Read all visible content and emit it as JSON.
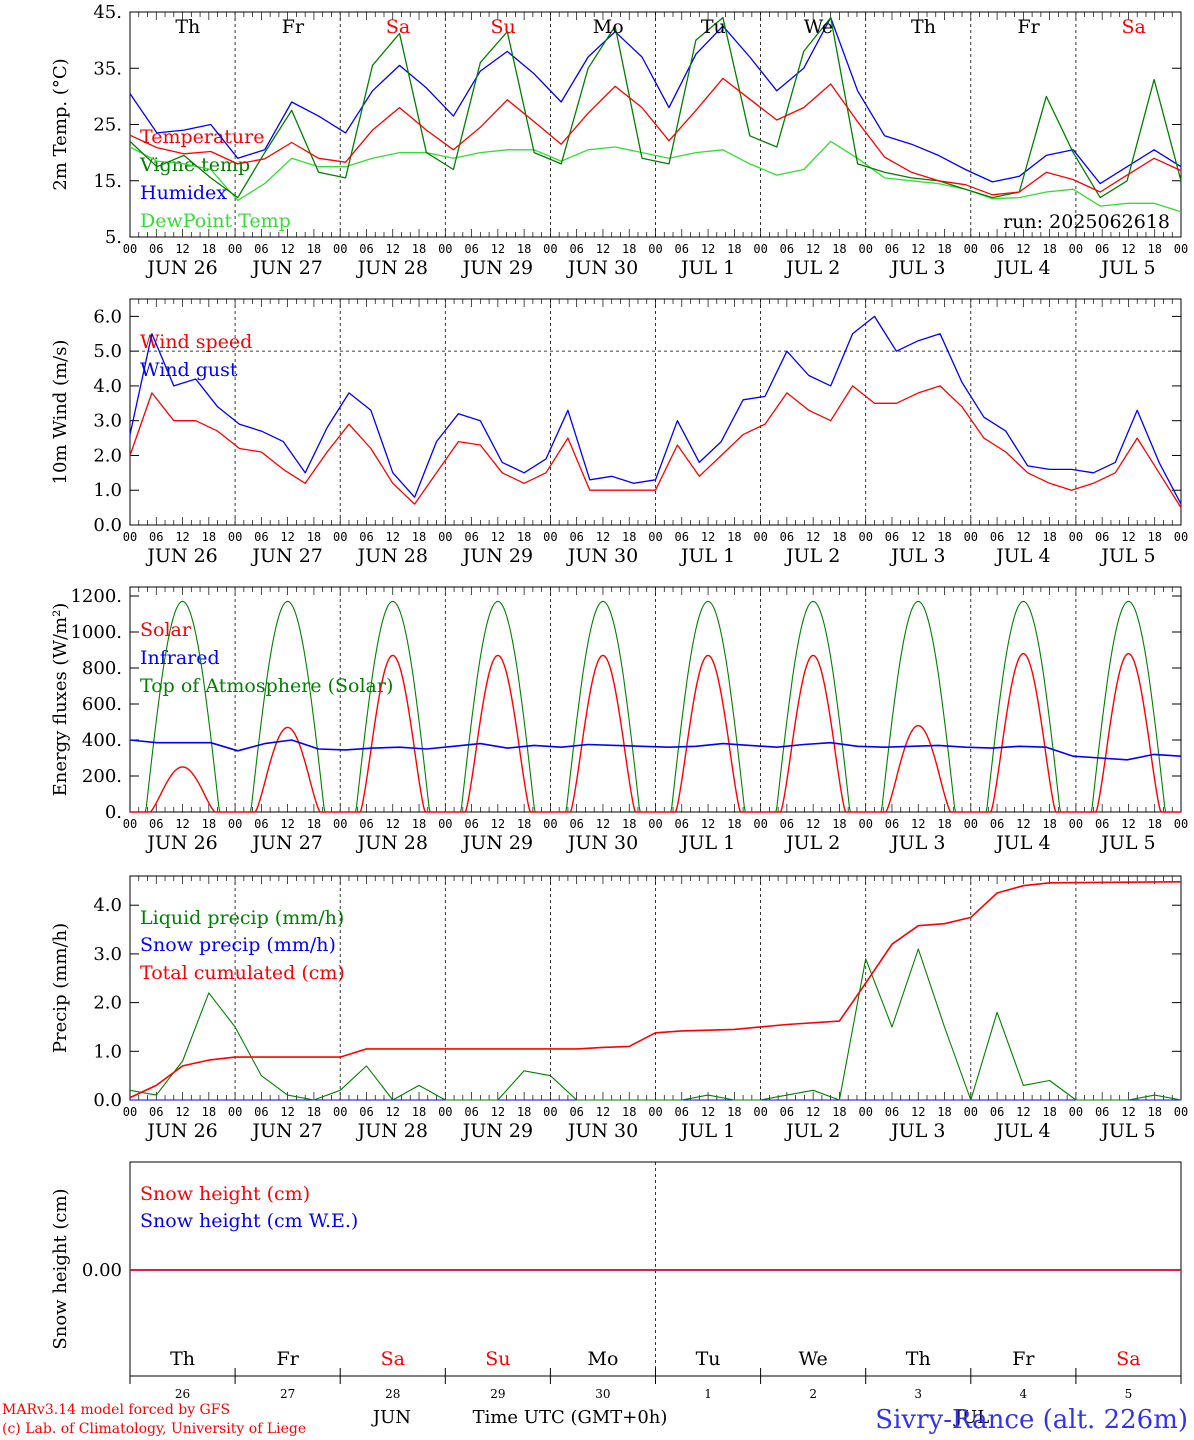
{
  "days": [
    "26",
    "27",
    "28",
    "29",
    "30",
    "1",
    "2",
    "3",
    "4",
    "5"
  ],
  "date_labels": [
    "JUN 26",
    "JUN 27",
    "JUN 28",
    "JUN 29",
    "JUN 30",
    "JUL  1",
    "JUL  2",
    "JUL  3",
    "JUL  4",
    "JUL  5"
  ],
  "weekdays": [
    "Th",
    "Fr",
    "Sa",
    "Su",
    "Mo",
    "Tu",
    "We",
    "Th",
    "Fr",
    "Sa"
  ],
  "weekend_flags": [
    false,
    false,
    true,
    true,
    false,
    false,
    false,
    false,
    false,
    true
  ],
  "hour_labels": [
    "00",
    "06",
    "12",
    "18"
  ],
  "last_hour_label": "00",
  "colors": {
    "red": "#ff0000",
    "green": "#008000",
    "blue": "#0000ff",
    "lightgreen": "#33dd33",
    "purple": "#3333ee"
  },
  "bottom_month_left": "JUN",
  "bottom_month_right": "JUL",
  "bottom_xlabel": "Time UTC (GMT+0h)",
  "credit_line1": "MARv3.14 model forced by GFS",
  "credit_line2": "(c) Lab. of Climatology, University of Liege",
  "station": "Sivry-Rance (alt. 226m)",
  "chart_data": [
    {
      "type": "line",
      "ylabel": "2m Temp. (°C)",
      "ylim": [
        5,
        45
      ],
      "yticks": [
        "45.",
        "35.",
        "25.",
        "15.",
        "5."
      ],
      "run_label": "run: 2025062618",
      "series": [
        {
          "name": "Temperature",
          "color": "red",
          "values": [
            23.1,
            20.9,
            19.8,
            20.2,
            18.0,
            18.9,
            21.8,
            19.0,
            18.3,
            24.0,
            28.0,
            24.0,
            20.5,
            24.5,
            29.4,
            25.5,
            21.5,
            27.0,
            31.8,
            28.0,
            22.1,
            27.5,
            33.2,
            29.5,
            25.8,
            28.0,
            32.2,
            25.5,
            19.2,
            16.5,
            15.0,
            14.3,
            12.5,
            13.0,
            16.5,
            15.2,
            13.0,
            16.0,
            19.0,
            16.8
          ]
        },
        {
          "name": "Vigne temp",
          "color": "green",
          "values": [
            22.0,
            17.5,
            19.5,
            15.5,
            12.0,
            20.0,
            27.5,
            16.5,
            15.5,
            35.5,
            41.2,
            20.0,
            17.0,
            36.0,
            41.5,
            20.0,
            18.0,
            35.0,
            42.5,
            19.0,
            18.0,
            40.0,
            44.0,
            23.0,
            21.0,
            38.0,
            44.0,
            18.0,
            16.5,
            15.5,
            15.0,
            13.5,
            12.0,
            13.0,
            30.0,
            20.0,
            12.0,
            15.0,
            33.0,
            15.0
          ]
        },
        {
          "name": "Humidex",
          "color": "blue",
          "values": [
            30.5,
            23.5,
            24.0,
            25.0,
            19.0,
            20.5,
            29.0,
            26.5,
            23.5,
            31.0,
            35.5,
            31.5,
            26.5,
            34.5,
            38.0,
            34.0,
            29.0,
            37.0,
            41.5,
            37.0,
            28.0,
            37.5,
            42.5,
            37.0,
            31.0,
            35.0,
            44.0,
            31.0,
            23.0,
            21.5,
            19.5,
            17.0,
            14.8,
            15.8,
            19.5,
            20.5,
            14.5,
            17.5,
            20.5,
            17.5
          ]
        },
        {
          "name": "DewPoint Temp",
          "color": "lightgreen",
          "values": [
            21.0,
            18.5,
            18.0,
            17.0,
            11.5,
            14.5,
            19.0,
            17.5,
            17.5,
            19.0,
            20.0,
            20.0,
            19.0,
            20.0,
            20.5,
            20.5,
            18.5,
            20.5,
            21.0,
            20.0,
            19.0,
            20.0,
            20.5,
            18.0,
            16.0,
            17.0,
            22.0,
            19.0,
            15.5,
            15.0,
            14.5,
            13.5,
            11.8,
            12.0,
            13.0,
            13.5,
            10.5,
            11.0,
            11.0,
            9.5
          ]
        }
      ]
    },
    {
      "type": "line",
      "ylabel": "10m Wind (m/s)",
      "ylim": [
        0,
        6.5
      ],
      "yticks": [
        "6.0",
        "5.0",
        "4.0",
        "3.0",
        "2.0",
        "1.0",
        "0.0"
      ],
      "ref_line": 5.0,
      "series": [
        {
          "name": "Wind speed",
          "color": "red",
          "values": [
            2.0,
            3.8,
            3.0,
            3.0,
            2.7,
            2.2,
            2.1,
            1.6,
            1.2,
            2.1,
            2.9,
            2.2,
            1.2,
            0.6,
            1.5,
            2.4,
            2.3,
            1.5,
            1.2,
            1.5,
            2.5,
            1.0,
            1.0,
            1.0,
            1.0,
            2.3,
            1.4,
            2.0,
            2.6,
            2.9,
            3.8,
            3.3,
            3.0,
            4.0,
            3.5,
            3.5,
            3.8,
            4.0,
            3.4,
            2.5,
            2.1,
            1.5,
            1.2,
            1.0,
            1.2,
            1.5,
            2.5,
            1.5,
            0.5
          ]
        },
        {
          "name": "Wind gust",
          "color": "blue",
          "values": [
            2.6,
            5.5,
            4.0,
            4.2,
            3.4,
            2.9,
            2.7,
            2.4,
            1.5,
            2.8,
            3.8,
            3.3,
            1.5,
            0.8,
            2.4,
            3.2,
            3.0,
            1.8,
            1.5,
            1.9,
            3.3,
            1.3,
            1.4,
            1.2,
            1.3,
            3.0,
            1.8,
            2.4,
            3.6,
            3.7,
            5.0,
            4.3,
            4.0,
            5.5,
            6.0,
            5.0,
            5.3,
            5.5,
            4.1,
            3.1,
            2.7,
            1.7,
            1.6,
            1.6,
            1.5,
            1.8,
            3.3,
            1.8,
            0.6
          ]
        }
      ]
    },
    {
      "type": "line",
      "ylabel": "Energy fluxes (W/m²)",
      "ylim": [
        0,
        1250
      ],
      "yticks": [
        "1200.",
        "1000.",
        "800.",
        "600.",
        "400.",
        "200.",
        "0."
      ],
      "series": [
        {
          "name": "Solar",
          "color": "red",
          "day_peaks": [
            250,
            470,
            870,
            870,
            870,
            870,
            870,
            480,
            880,
            880
          ]
        },
        {
          "name": "Infrared",
          "color": "blue",
          "values": [
            400,
            385,
            385,
            385,
            340,
            380,
            400,
            350,
            345,
            355,
            360,
            350,
            365,
            380,
            355,
            370,
            360,
            375,
            370,
            365,
            360,
            365,
            380,
            370,
            360,
            375,
            385,
            365,
            360,
            365,
            370,
            360,
            355,
            365,
            360,
            310,
            300,
            290,
            320,
            310
          ]
        },
        {
          "name": "Top of Atmosphere (Solar)",
          "color": "green",
          "day_peaks": [
            1170,
            1170,
            1170,
            1170,
            1170,
            1170,
            1170,
            1170,
            1170,
            1170
          ]
        }
      ]
    },
    {
      "type": "line",
      "ylabel": "Precip (mm/h)",
      "ylim": [
        0,
        4.6
      ],
      "yticks": [
        "4.0",
        "3.0",
        "2.0",
        "1.0",
        "0.0"
      ],
      "series": [
        {
          "name": "Liquid precip (mm/h)",
          "color": "green",
          "points": [
            [
              0,
              0.2
            ],
            [
              1,
              0.1
            ],
            [
              2,
              0.8
            ],
            [
              3,
              2.2
            ],
            [
              4,
              1.5
            ],
            [
              5,
              0.5
            ],
            [
              6,
              0.1
            ],
            [
              7,
              0
            ],
            [
              8,
              0.2
            ],
            [
              9,
              0.7
            ],
            [
              10,
              0
            ],
            [
              11,
              0.3
            ],
            [
              12,
              0
            ],
            [
              13,
              0
            ],
            [
              14,
              0
            ],
            [
              15,
              0.6
            ],
            [
              16,
              0.5
            ],
            [
              17,
              0
            ],
            [
              18,
              0
            ],
            [
              19,
              0
            ],
            [
              20,
              0
            ],
            [
              21,
              0
            ],
            [
              22,
              0.1
            ],
            [
              23,
              0
            ],
            [
              24,
              0
            ],
            [
              25,
              0.1
            ],
            [
              26,
              0.2
            ],
            [
              27,
              0
            ],
            [
              28,
              2.9
            ],
            [
              29,
              1.5
            ],
            [
              30,
              3.1
            ],
            [
              31,
              1.5
            ],
            [
              32,
              0
            ],
            [
              33,
              1.8
            ],
            [
              34,
              0.3
            ],
            [
              35,
              0.4
            ],
            [
              36,
              0
            ],
            [
              37,
              0
            ],
            [
              38,
              0
            ],
            [
              39,
              0.1
            ],
            [
              40,
              0
            ]
          ]
        },
        {
          "name": "Snow precip (mm/h)",
          "color": "blue",
          "points": [
            [
              0,
              0
            ],
            [
              40,
              0
            ]
          ]
        },
        {
          "name": "Total cumulated (cm)",
          "color": "red",
          "points": [
            [
              0,
              0.05
            ],
            [
              1,
              0.3
            ],
            [
              2,
              0.7
            ],
            [
              3,
              0.82
            ],
            [
              4,
              0.88
            ],
            [
              8,
              0.88
            ],
            [
              9,
              1.05
            ],
            [
              17,
              1.05
            ],
            [
              18,
              1.08
            ],
            [
              19,
              1.1
            ],
            [
              20,
              1.38
            ],
            [
              21,
              1.42
            ],
            [
              23,
              1.45
            ],
            [
              25,
              1.55
            ],
            [
              27,
              1.62
            ],
            [
              28,
              2.4
            ],
            [
              29,
              3.2
            ],
            [
              30,
              3.58
            ],
            [
              31,
              3.62
            ],
            [
              32,
              3.75
            ],
            [
              33,
              4.25
            ],
            [
              34,
              4.4
            ],
            [
              35,
              4.46
            ],
            [
              40,
              4.48
            ]
          ]
        }
      ]
    },
    {
      "type": "line",
      "ylabel": "Snow height (cm)",
      "yticks": [
        "0.00"
      ],
      "series": [
        {
          "name": "Snow height (cm)",
          "color": "red",
          "values": [
            0,
            0
          ]
        },
        {
          "name": "Snow height (cm W.E.)",
          "color": "blue",
          "values": [
            0,
            0
          ]
        }
      ]
    }
  ]
}
